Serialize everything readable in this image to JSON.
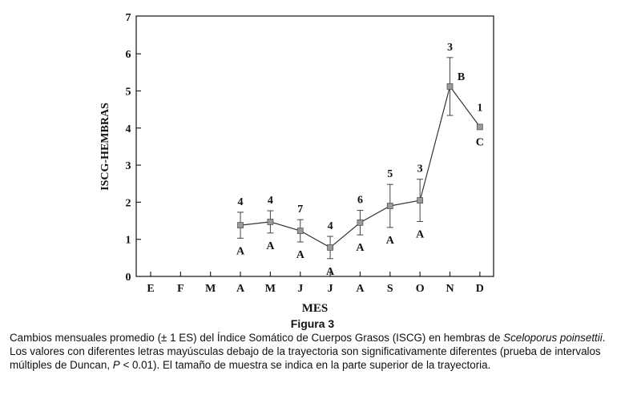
{
  "chart_data": {
    "type": "line",
    "xlabel": "MES",
    "ylabel": "ISCG-HEMBRAS",
    "categories": [
      "E",
      "F",
      "M",
      "A",
      "M",
      "J",
      "J",
      "A",
      "S",
      "O",
      "N",
      "D"
    ],
    "yticks": [
      "0",
      "1",
      "2",
      "3",
      "4",
      "5",
      "6",
      "7"
    ],
    "ylim": [
      0,
      7
    ],
    "grid": false,
    "series": [
      {
        "x": [
          "A",
          "M",
          "J",
          "J",
          "A",
          "S",
          "O",
          "N",
          "D"
        ],
        "values": [
          1.38,
          1.47,
          1.23,
          0.78,
          1.45,
          1.9,
          2.05,
          5.12,
          4.03
        ],
        "error": [
          0.35,
          0.3,
          0.3,
          0.3,
          0.33,
          0.58,
          0.57,
          0.78,
          null
        ],
        "n_labels": [
          "4",
          "4",
          "7",
          "4",
          "6",
          "5",
          "3",
          "3",
          "1"
        ],
        "group_letters": [
          "A",
          "A",
          "A",
          "A",
          "A",
          "A",
          "A",
          "B",
          "C"
        ]
      }
    ]
  },
  "figure": {
    "title": "Figura 3",
    "caption_parts": [
      "Cambios mensuales promedio (± 1 ES) del Índice Somático de Cuerpos Grasos (ISCG) en hembras de ",
      "Sceloporus poinsettii",
      ". Los valores con diferentes letras mayúsculas debajo de la trayectoria son significativamente diferentes (prueba de intervalos múltiples de Duncan, ",
      "P",
      " < 0.01). El tamaño de muestra se indica en la parte superior de la trayectoria."
    ]
  }
}
